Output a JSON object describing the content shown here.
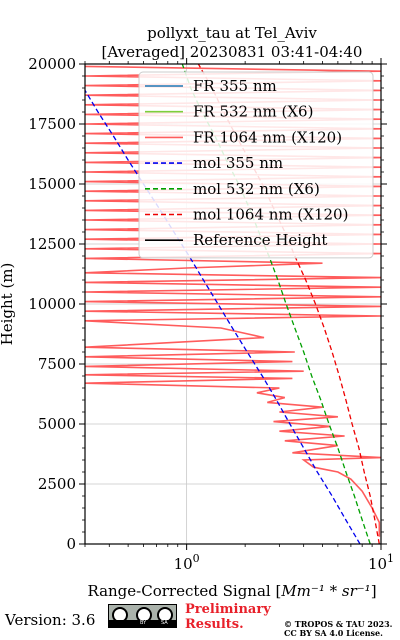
{
  "chart_data": {
    "type": "line",
    "title_line1": "pollyxt_tau at Tel_Aviv",
    "title_line2": "[Averaged] 20230831 03:41-04:40",
    "xlabel_prefix": "Range-Corrected Signal [",
    "xlabel_math": "Mm⁻¹ * sr⁻¹",
    "xlabel_suffix": "]",
    "ylabel": "Height (m)",
    "x_scale": "log",
    "xlim": [
      0.3,
      10
    ],
    "ylim": [
      0,
      20000
    ],
    "x_ticks": [
      {
        "value": 1,
        "base": "10",
        "exp": "0"
      },
      {
        "value": 10,
        "base": "10",
        "exp": "1"
      }
    ],
    "y_ticks": [
      0,
      2500,
      5000,
      7500,
      10000,
      12500,
      15000,
      17500,
      20000
    ],
    "grid": true,
    "legend_position": "top-right",
    "legend": [
      {
        "label": "FR 355 nm",
        "color": "#1f77b4",
        "style": "solid"
      },
      {
        "label": "FR 532 nm (X6)",
        "color": "#7dcf3c",
        "style": "solid"
      },
      {
        "label": "FR 1064 nm (X120)",
        "color": "#ff5c5c",
        "style": "solid"
      },
      {
        "label": "mol 355 nm",
        "color": "#0000ee",
        "style": "dashed"
      },
      {
        "label": "mol 532 nm (X6)",
        "color": "#00a000",
        "style": "dashed"
      },
      {
        "label": "mol 1064 nm (X120)",
        "color": "#ee0000",
        "style": "dashed"
      },
      {
        "label": "Reference Height",
        "color": "#000000",
        "style": "solid"
      }
    ],
    "series": [
      {
        "name": "mol 355 nm",
        "color": "#0000ee",
        "style": "dashed",
        "points": [
          [
            7.8,
            0
          ],
          [
            6.6,
            1000
          ],
          [
            5.6,
            2000
          ],
          [
            4.7,
            3000
          ],
          [
            4.0,
            4000
          ],
          [
            3.4,
            5000
          ],
          [
            2.9,
            6000
          ],
          [
            2.45,
            7000
          ],
          [
            2.05,
            8000
          ],
          [
            1.72,
            9000
          ],
          [
            1.45,
            10000
          ],
          [
            1.22,
            11000
          ],
          [
            1.03,
            12000
          ],
          [
            0.86,
            13000
          ],
          [
            0.72,
            14000
          ],
          [
            0.6,
            15000
          ],
          [
            0.5,
            16000
          ],
          [
            0.42,
            17000
          ],
          [
            0.35,
            18000
          ],
          [
            0.295,
            19000
          ]
        ]
      },
      {
        "name": "mol 532 nm (X6)",
        "color": "#00a000",
        "style": "dashed",
        "points": [
          [
            8.8,
            0
          ],
          [
            8.0,
            1000
          ],
          [
            7.3,
            2000
          ],
          [
            6.6,
            3000
          ],
          [
            6.0,
            4000
          ],
          [
            5.4,
            5000
          ],
          [
            4.9,
            6000
          ],
          [
            4.4,
            7000
          ],
          [
            4.0,
            8000
          ],
          [
            3.6,
            9000
          ],
          [
            3.25,
            10000
          ],
          [
            2.95,
            11000
          ],
          [
            2.65,
            12000
          ],
          [
            2.35,
            13000
          ],
          [
            2.1,
            14000
          ],
          [
            1.85,
            15000
          ],
          [
            1.6,
            16000
          ],
          [
            1.4,
            17000
          ],
          [
            1.2,
            18000
          ],
          [
            1.05,
            19000
          ],
          [
            0.95,
            20000
          ]
        ]
      },
      {
        "name": "mol 1064 nm (X120)",
        "color": "#ee0000",
        "style": "dashed",
        "points": [
          [
            9.8,
            0
          ],
          [
            9.3,
            1000
          ],
          [
            8.8,
            2000
          ],
          [
            8.2,
            3000
          ],
          [
            7.7,
            4000
          ],
          [
            7.1,
            5000
          ],
          [
            6.6,
            6000
          ],
          [
            6.1,
            7000
          ],
          [
            5.6,
            8000
          ],
          [
            5.1,
            9000
          ],
          [
            4.6,
            10000
          ],
          [
            4.1,
            11000
          ],
          [
            3.6,
            12000
          ],
          [
            3.2,
            13000
          ],
          [
            2.8,
            14000
          ],
          [
            2.45,
            15000
          ],
          [
            2.1,
            16000
          ],
          [
            1.8,
            17000
          ],
          [
            1.55,
            18000
          ],
          [
            1.35,
            19000
          ],
          [
            1.15,
            20000
          ]
        ]
      },
      {
        "name": "FR 1064 nm (X120)",
        "color": "#ff5c5c",
        "style": "solid",
        "points": [
          [
            9.8,
            300
          ],
          [
            9.8,
            900
          ],
          [
            9.0,
            1500
          ],
          [
            8.0,
            2200
          ],
          [
            7.0,
            2700
          ],
          [
            6.0,
            3000
          ],
          [
            4.5,
            3200
          ],
          [
            4.0,
            3500
          ],
          [
            10,
            3600
          ],
          [
            3.5,
            3800
          ],
          [
            6.0,
            4100
          ],
          [
            3.2,
            4300
          ],
          [
            6.5,
            4500
          ],
          [
            3.0,
            4700
          ],
          [
            5.5,
            4900
          ],
          [
            2.8,
            5100
          ],
          [
            6.0,
            5300
          ],
          [
            3.0,
            5500
          ],
          [
            5.0,
            5700
          ],
          [
            2.6,
            5900
          ],
          [
            3.2,
            6100
          ],
          [
            2.3,
            6300
          ],
          [
            3.0,
            6500
          ],
          [
            0.3,
            6700
          ],
          [
            3.5,
            6900
          ],
          [
            0.3,
            7050
          ],
          [
            4.0,
            7200
          ],
          [
            0.3,
            7400
          ],
          [
            3.5,
            7600
          ],
          [
            0.3,
            7800
          ],
          [
            3.6,
            8000
          ],
          [
            0.3,
            8200
          ],
          [
            2.5,
            8600
          ],
          [
            1.5,
            9000
          ],
          [
            0.3,
            9300
          ],
          [
            10,
            9500
          ],
          [
            0.3,
            9700
          ],
          [
            10,
            9900
          ],
          [
            0.3,
            10100
          ],
          [
            10,
            10300
          ],
          [
            0.3,
            10500
          ],
          [
            10,
            10700
          ],
          [
            0.3,
            10900
          ],
          [
            10,
            11100
          ],
          [
            0.3,
            11300
          ],
          [
            1.0,
            11500
          ],
          [
            5.0,
            11700
          ],
          [
            0.3,
            11900
          ],
          [
            10,
            12100
          ],
          [
            0.3,
            12300
          ],
          [
            10,
            12500
          ],
          [
            0.3,
            12700
          ],
          [
            10,
            12900
          ],
          [
            0.3,
            13100
          ],
          [
            10,
            13300
          ],
          [
            0.3,
            13500
          ],
          [
            10,
            13700
          ],
          [
            0.3,
            13900
          ],
          [
            10,
            14100
          ],
          [
            0.3,
            14300
          ],
          [
            10,
            14500
          ],
          [
            0.3,
            14700
          ],
          [
            10,
            14900
          ],
          [
            0.3,
            15100
          ],
          [
            10,
            15300
          ],
          [
            0.3,
            15500
          ],
          [
            10,
            15700
          ],
          [
            0.3,
            15900
          ],
          [
            10,
            16100
          ],
          [
            0.3,
            16300
          ],
          [
            10,
            16500
          ],
          [
            0.3,
            16700
          ],
          [
            10,
            16900
          ],
          [
            0.3,
            17100
          ],
          [
            10,
            17300
          ],
          [
            0.3,
            17500
          ],
          [
            10,
            17700
          ],
          [
            0.3,
            17900
          ],
          [
            10,
            18100
          ],
          [
            0.3,
            18300
          ],
          [
            10,
            18500
          ],
          [
            0.3,
            18700
          ],
          [
            10,
            18900
          ],
          [
            0.3,
            19100
          ],
          [
            10,
            19300
          ],
          [
            0.3,
            19500
          ],
          [
            10,
            19700
          ],
          [
            0.3,
            19900
          ]
        ]
      }
    ]
  },
  "footer": {
    "version": "Version: 3.6",
    "cc_by": "BY",
    "cc_sa": "SA",
    "preliminary_line1": "Preliminary",
    "preliminary_line2": "Results.",
    "copyright_line1": "© TROPOS & TAU 2023.",
    "copyright_line2": "CC BY SA 4.0 License."
  }
}
